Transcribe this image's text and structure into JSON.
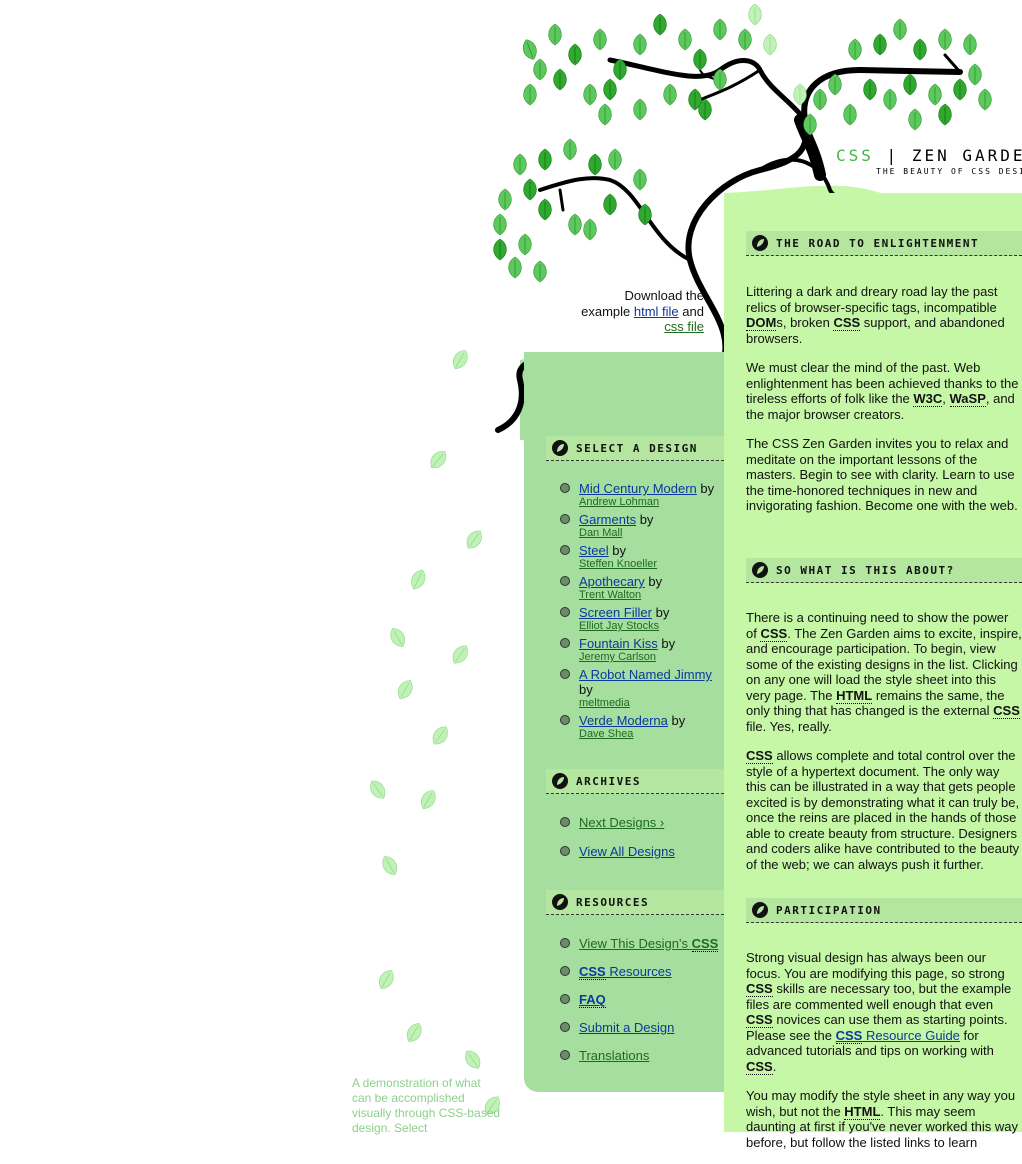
{
  "header": {
    "title_css": "CSS",
    "title_sep": "|",
    "title_rest": "ZEN GARDEN",
    "subtitle": "THE BEAUTY OF CSS DESIGN"
  },
  "download": {
    "line1": "Download the",
    "line2": "example",
    "html_link": "html file",
    "and": "and",
    "css_link": "css file"
  },
  "sections": {
    "road": {
      "heading": "The Road to Enlightenment",
      "p1_a": "Littering a dark and dreary road lay the past relics of browser-specific tags, incompatible ",
      "p1_dom": "DOM",
      "p1_b": "s, broken ",
      "p1_css": "CSS",
      "p1_c": " support, and abandoned browsers.",
      "p2_a": "We must clear the mind of the past. Web enlightenment has been achieved thanks to the tireless efforts of folk like the ",
      "p2_w3c": "W3C",
      "p2_comma": ", ",
      "p2_wasp": "WaSP",
      "p2_b": ", and the major browser creators.",
      "p3": "The CSS Zen Garden invites you to relax and meditate on the important lessons of the masters. Begin to see with clarity. Learn to use the time-honored techniques in new and invigorating fashion. Become one with the web."
    },
    "about": {
      "heading": "So What is This About?",
      "p1_a": "There is a continuing need to show the power of ",
      "p1_css": "CSS",
      "p1_b": ". The Zen Garden aims to excite, inspire, and encourage participation. To begin, view some of the existing designs in the list. Clicking on any one will load the style sheet into this very page. The ",
      "p1_html": "HTML",
      "p1_c": " remains the same, the only thing that has changed is the external ",
      "p1_css2": "CSS",
      "p1_d": " file. Yes, really.",
      "p2_css": "CSS",
      "p2_a": " allows complete and total control over the style of a hypertext document. The only way this can be illustrated in a way that gets people excited is by demonstrating what it can truly be, once the reins are placed in the hands of those able to create beauty from structure. Designers and coders alike have contributed to the beauty of the web; we can always push it further."
    },
    "participation": {
      "heading": "Participation",
      "p1_a": "Strong visual design has always been our focus. You are modifying this page, so strong ",
      "p1_css": "CSS",
      "p1_b": " skills are necessary too, but the example files are commented well enough that even ",
      "p1_css2": "CSS",
      "p1_c": " novices can use them as starting points. Please see the ",
      "p1_link_css": "CSS",
      "p1_link": " Resource Guide",
      "p1_d": " for advanced tutorials and tips on working with ",
      "p1_css3": "CSS",
      "p1_e": ".",
      "p2_a": "You may modify the style sheet in any way you wish, but not the ",
      "p2_html": "HTML",
      "p2_b": ". This may seem daunting at first if you've never worked this way before, but follow the listed links to learn"
    }
  },
  "sidebar": {
    "select_heading": "Select a Design",
    "by": "by",
    "designs": [
      {
        "name": "Mid Century Modern",
        "author": "Andrew Lohman"
      },
      {
        "name": "Garments",
        "author": "Dan Mall"
      },
      {
        "name": "Steel",
        "author": "Steffen Knoeller"
      },
      {
        "name": "Apothecary",
        "author": "Trent Walton"
      },
      {
        "name": "Screen Filler",
        "author": "Elliot Jay Stocks"
      },
      {
        "name": "Fountain Kiss",
        "author": "Jeremy Carlson"
      },
      {
        "name": "A Robot Named Jimmy",
        "author": "meltmedia"
      },
      {
        "name": "Verde Moderna",
        "author": "Dave Shea"
      }
    ],
    "archives_heading": "Archives",
    "next_designs": "Next Designs ›",
    "view_all": "View All Designs",
    "resources_heading": "Resources",
    "res_view": "View This Design's ",
    "res_view_css": "CSS",
    "res_css": "CSS",
    "res_css_rest": " Resources",
    "res_faq": "FAQ",
    "res_submit": "Submit a Design",
    "res_translations": "Translations"
  },
  "footer": {
    "text": "A demonstration of what can be accomplished visually through CSS-based design. Select"
  },
  "colors": {
    "main_bg": "#c6f7a6",
    "sidebar_bg": "#a6dea0",
    "heading_bg": "#b5e6a0",
    "leaf_dark": "#2faa2f",
    "leaf_light": "#9fe89f"
  }
}
